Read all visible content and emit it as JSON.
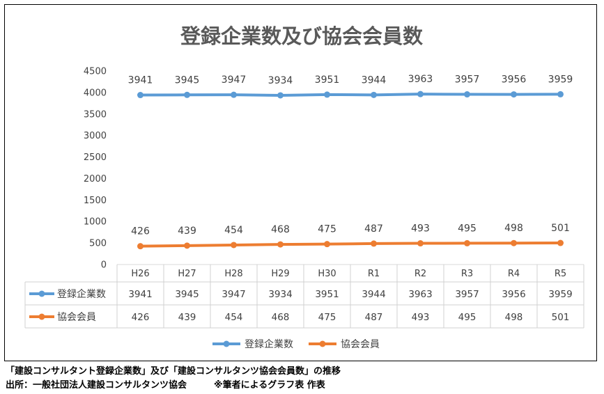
{
  "chart_data": {
    "type": "line",
    "title": "登録企業数及び協会会員数",
    "categories": [
      "H26",
      "H27",
      "H28",
      "H29",
      "H30",
      "R1",
      "R2",
      "R3",
      "R4",
      "R5"
    ],
    "series": [
      {
        "name": "登録企業数",
        "values": [
          3941,
          3945,
          3947,
          3934,
          3951,
          3944,
          3963,
          3957,
          3956,
          3959
        ]
      },
      {
        "name": "協会会員",
        "values": [
          426,
          439,
          454,
          468,
          475,
          487,
          493,
          495,
          498,
          501
        ]
      }
    ],
    "y_ticks": [
      "0",
      "500",
      "1000",
      "1500",
      "2000",
      "2500",
      "3000",
      "3500",
      "4000",
      "4500"
    ],
    "ylim": [
      0,
      4500
    ],
    "grid": false,
    "legend_position": "bottom",
    "data_table": true,
    "colors": {
      "series_0": "#5b9bd5",
      "series_1": "#ed7d31",
      "table_border": "#d0d0d0",
      "axis": "#d9d9d9"
    }
  },
  "captions": {
    "line1": "「建設コンサルタント登録企業数」及び「建設コンサルタンツ協会会員数」の推移",
    "line2": "出所：一般社団法人建設コンサルタンツ協会　　　※筆者によるグラフ表 作表"
  }
}
